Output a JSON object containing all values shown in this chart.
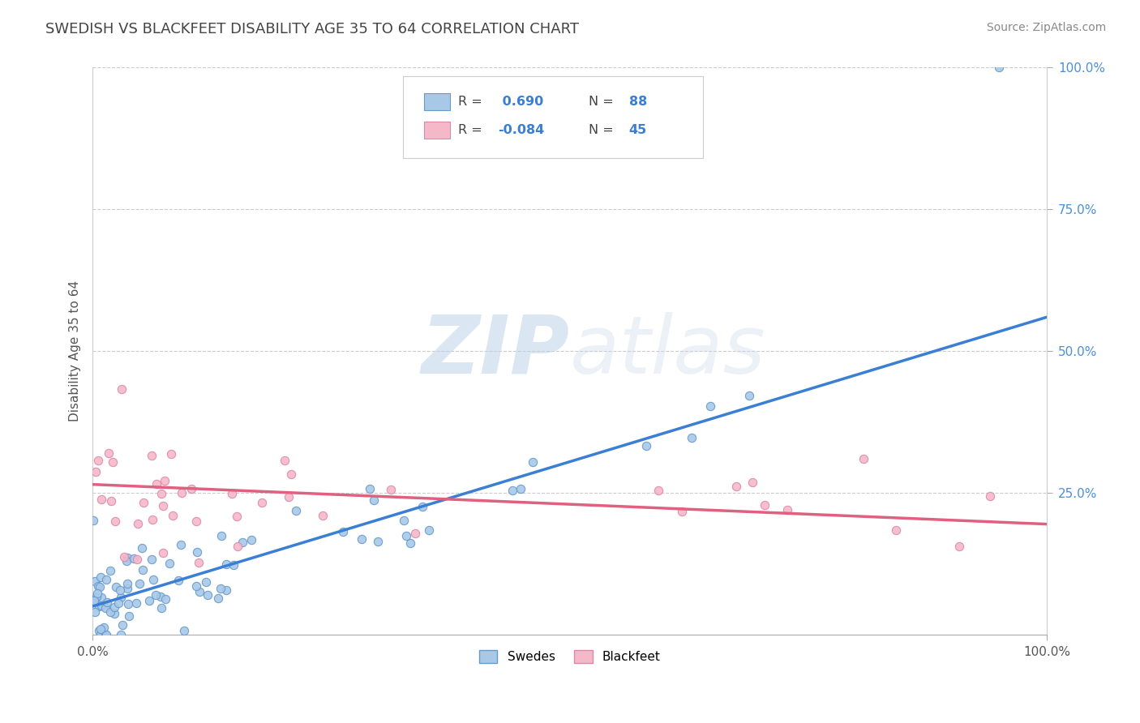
{
  "title": "SWEDISH VS BLACKFEET DISABILITY AGE 35 TO 64 CORRELATION CHART",
  "source_text": "Source: ZipAtlas.com",
  "ylabel": "Disability Age 35 to 64",
  "xlim": [
    0.0,
    1.0
  ],
  "ylim": [
    0.0,
    1.0
  ],
  "ytick_positions": [
    0.25,
    0.5,
    0.75,
    1.0
  ],
  "ytick_labels": [
    "25.0%",
    "50.0%",
    "75.0%",
    "100.0%"
  ],
  "swedes_color": "#a8c8e8",
  "swedes_edge_color": "#6699cc",
  "blackfeet_color": "#f4b8c8",
  "blackfeet_edge_color": "#dd88aa",
  "swedes_R": 0.69,
  "swedes_N": 88,
  "blackfeet_R": -0.084,
  "blackfeet_N": 45,
  "watermark_zip": "ZIP",
  "watermark_atlas": "atlas",
  "background_color": "#ffffff",
  "grid_color": "#cccccc",
  "trend_color_swedes": "#3a7fd4",
  "trend_color_blackfeet": "#e06080",
  "sw_trend_x0": 0.0,
  "sw_trend_y0": 0.05,
  "sw_trend_x1": 1.0,
  "sw_trend_y1": 0.56,
  "bf_trend_x0": 0.0,
  "bf_trend_y0": 0.265,
  "bf_trend_x1": 1.0,
  "bf_trend_y1": 0.195,
  "legend_R_color": "#3a7fd4",
  "legend_N_color": "#3a7fd4",
  "title_color": "#444444",
  "source_color": "#888888",
  "ylabel_color": "#555555",
  "yticklabel_color": "#4a90d9",
  "xticklabel_color": "#555555"
}
